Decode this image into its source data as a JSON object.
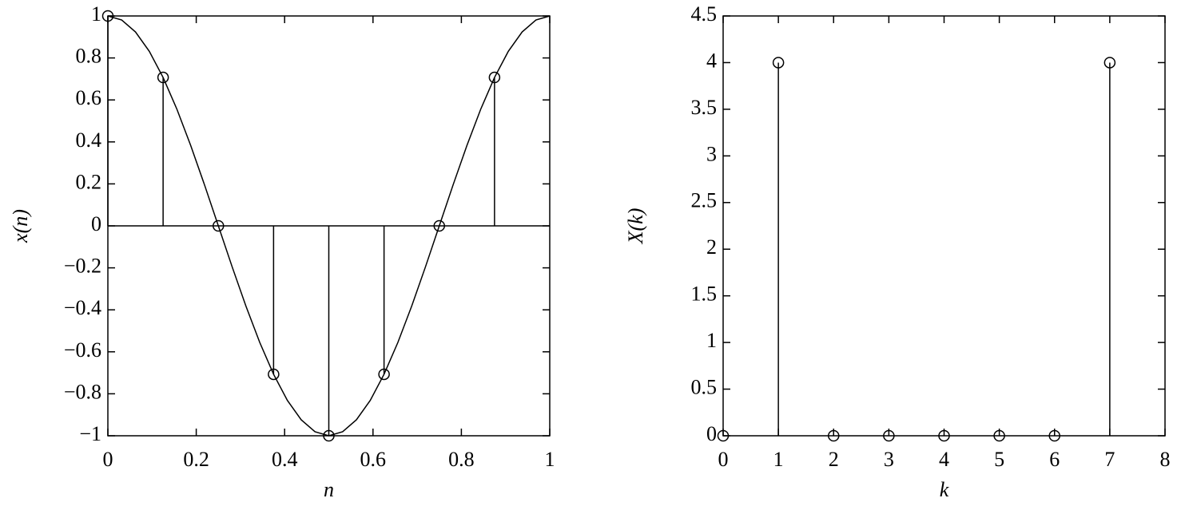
{
  "chart_data": [
    {
      "type": "stem",
      "xlabel": "n",
      "ylabel": "x(n)",
      "x": [
        0,
        0.125,
        0.25,
        0.375,
        0.5,
        0.625,
        0.75,
        0.875
      ],
      "values": [
        1,
        0.7071,
        0,
        -0.7071,
        -1,
        -0.7071,
        0,
        0.7071
      ],
      "curve": {
        "x": [
          0,
          0.03125,
          0.0625,
          0.09375,
          0.125,
          0.15625,
          0.1875,
          0.21875,
          0.25,
          0.28125,
          0.3125,
          0.34375,
          0.375,
          0.40625,
          0.4375,
          0.46875,
          0.5,
          0.53125,
          0.5625,
          0.59375,
          0.625,
          0.65625,
          0.6875,
          0.71875,
          0.75,
          0.78125,
          0.8125,
          0.84375,
          0.875,
          0.90625,
          0.9375,
          0.96875,
          1
        ],
        "values": [
          1,
          0.9808,
          0.9239,
          0.8315,
          0.7071,
          0.5556,
          0.3827,
          0.1951,
          0,
          -0.1951,
          -0.3827,
          -0.5556,
          -0.7071,
          -0.8315,
          -0.9239,
          -0.9808,
          -1,
          -0.9808,
          -0.9239,
          -0.8315,
          -0.7071,
          -0.5556,
          -0.3827,
          -0.1951,
          0,
          0.1951,
          0.3827,
          0.5556,
          0.7071,
          0.8315,
          0.9239,
          0.9808,
          1
        ]
      },
      "color": "#000000",
      "xlim": [
        0,
        1
      ],
      "xticks": [
        0,
        0.2,
        0.4,
        0.6,
        0.8,
        1
      ],
      "ylim": [
        -1,
        1
      ],
      "yticks": [
        {
          "value": -1,
          "label": "−1"
        },
        {
          "value": -0.8,
          "label": "−0.8"
        },
        {
          "value": -0.6,
          "label": "−0.6"
        },
        {
          "value": -0.4,
          "label": "−0.4"
        },
        {
          "value": -0.2,
          "label": "−0.2"
        },
        0,
        0.2,
        0.4,
        0.6,
        0.8,
        1
      ]
    },
    {
      "type": "stem",
      "xlabel": "k",
      "ylabel": "X(k)",
      "x": [
        0,
        1,
        2,
        3,
        4,
        5,
        6,
        7
      ],
      "values": [
        0,
        4,
        0,
        0,
        0,
        0,
        0,
        4
      ],
      "color": "#000000",
      "xlim": [
        0,
        8
      ],
      "xticks": [
        0,
        1,
        2,
        3,
        4,
        5,
        6,
        7,
        8
      ],
      "ylim": [
        0,
        4.5
      ],
      "yticks": [
        0,
        0.5,
        1,
        1.5,
        2,
        2.5,
        3,
        3.5,
        4,
        4.5
      ]
    }
  ]
}
